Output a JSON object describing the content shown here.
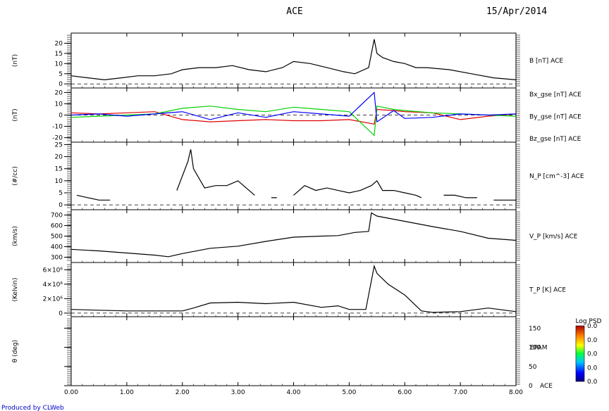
{
  "header": {
    "title": "ACE",
    "date": "15/Apr/2014"
  },
  "footer": {
    "credit": "Produced by CLWeb"
  },
  "colors": {
    "bx": "#e00000",
    "by": "#00d000",
    "bz": "#0000ff",
    "trace": "#000000"
  },
  "x_axis": {
    "ticks": [
      "0.00",
      "1.00",
      "2.00",
      "3.00",
      "4.00",
      "5.00",
      "6.00",
      "7.00",
      "8.00"
    ],
    "range": [
      0,
      8
    ]
  },
  "chart_data": [
    {
      "type": "line",
      "ylabel": "(nT)",
      "ylim": [
        -2,
        25
      ],
      "tick_labels": [
        "20",
        "15",
        "10",
        "5",
        "0"
      ],
      "tick_values": [
        20,
        15,
        10,
        5,
        0
      ],
      "series": [
        {
          "name": "B [nT] ACE",
          "x": [
            0,
            0.3,
            0.6,
            0.9,
            1.2,
            1.5,
            1.8,
            2.0,
            2.3,
            2.6,
            2.9,
            3.2,
            3.5,
            3.8,
            4.0,
            4.3,
            4.6,
            4.9,
            5.1,
            5.35,
            5.45,
            5.5,
            5.6,
            5.8,
            6.0,
            6.2,
            6.4,
            6.8,
            7.2,
            7.6,
            8.0
          ],
          "y": [
            4,
            3,
            2,
            3,
            4,
            4,
            5,
            7,
            8,
            8,
            9,
            7,
            6,
            8,
            11,
            10,
            8,
            6,
            5,
            8,
            22,
            15,
            13,
            11,
            10,
            8,
            8,
            7,
            5,
            3,
            2
          ]
        }
      ],
      "legend": [
        {
          "label": "B [nT] ACE",
          "color": "#000000"
        }
      ]
    },
    {
      "type": "line",
      "ylabel": "(nT)",
      "ylim": [
        -24,
        24
      ],
      "tick_labels": [
        "20",
        "10",
        "0",
        "-10",
        "-20"
      ],
      "tick_values": [
        20,
        10,
        0,
        -10,
        -20
      ],
      "series": [
        {
          "name": "Bx_gse [nT] ACE",
          "x": [
            0,
            0.5,
            1.0,
            1.5,
            2.0,
            2.5,
            3.0,
            3.5,
            4.0,
            4.5,
            5.0,
            5.45,
            5.5,
            5.8,
            6.0,
            6.5,
            7.0,
            7.5,
            8.0
          ],
          "y": [
            2,
            1,
            2,
            3,
            -4,
            -6,
            -5,
            -4,
            -5,
            -5,
            -4,
            -8,
            5,
            4,
            3,
            2,
            -4,
            -1,
            1
          ]
        },
        {
          "name": "By_gse [nT] ACE",
          "x": [
            0,
            0.5,
            1.0,
            1.5,
            2.0,
            2.5,
            3.0,
            3.5,
            4.0,
            4.5,
            5.0,
            5.45,
            5.5,
            5.8,
            6.0,
            6.5,
            7.0,
            7.5,
            8.0
          ],
          "y": [
            -2,
            -1,
            0,
            1,
            6,
            8,
            5,
            3,
            7,
            5,
            3,
            -18,
            8,
            5,
            4,
            2,
            1,
            0,
            -1
          ]
        },
        {
          "name": "Bz_gse [nT] ACE",
          "x": [
            0,
            0.5,
            1.0,
            1.5,
            2.0,
            2.5,
            3.0,
            3.5,
            4.0,
            4.5,
            5.0,
            5.45,
            5.5,
            5.8,
            6.0,
            6.5,
            7.0,
            7.5,
            8.0
          ],
          "y": [
            0,
            1,
            -1,
            1,
            3,
            -4,
            2,
            -2,
            3,
            1,
            -1,
            20,
            -6,
            4,
            -3,
            -2,
            1,
            0,
            1
          ]
        }
      ],
      "legend": [
        {
          "label": "Bx_gse [nT] ACE",
          "color": "#e00000"
        },
        {
          "label": "By_gse [nT] ACE",
          "color": "#00d000"
        },
        {
          "label": "Bz_gse [nT] ACE",
          "color": "#0000ff"
        }
      ]
    },
    {
      "type": "line",
      "ylabel": "(#/cc)",
      "ylim": [
        -2,
        26
      ],
      "tick_labels": [
        "25",
        "20",
        "15",
        "10",
        "5",
        "0"
      ],
      "tick_values": [
        25,
        20,
        15,
        10,
        5,
        0
      ],
      "series": [
        {
          "name": "N_P [cm^-3] ACE",
          "x": [
            0.1,
            0.3,
            0.5,
            0.7,
            null,
            1.9,
            2.1,
            2.15,
            2.2,
            2.4,
            2.6,
            2.8,
            3.0,
            3.2,
            3.3,
            null,
            3.6,
            3.7,
            null,
            4.0,
            4.2,
            4.4,
            4.6,
            4.8,
            5.0,
            5.2,
            5.4,
            5.5,
            5.6,
            5.8,
            6.0,
            6.2,
            6.3,
            null,
            6.7,
            6.9,
            7.1,
            7.3,
            null,
            7.6,
            7.8,
            8.0
          ],
          "y": [
            4,
            3,
            2,
            2,
            null,
            6,
            18,
            23,
            15,
            7,
            8,
            8,
            10,
            6,
            4,
            null,
            3,
            3,
            null,
            4,
            8,
            6,
            7,
            6,
            5,
            6,
            8,
            10,
            6,
            6,
            5,
            4,
            3,
            null,
            4,
            4,
            3,
            3,
            null,
            2,
            2,
            2
          ]
        }
      ],
      "legend": [
        {
          "label": "N_P [cm^-3] ACE",
          "color": "#000000"
        }
      ]
    },
    {
      "type": "line",
      "ylabel": "(km/s)",
      "ylim": [
        250,
        750
      ],
      "tick_labels": [
        "700",
        "600",
        "500",
        "400",
        "300"
      ],
      "tick_values": [
        700,
        600,
        500,
        400,
        300
      ],
      "series": [
        {
          "name": "V_P [km/s] ACE",
          "x": [
            0,
            0.5,
            1.0,
            1.5,
            1.75,
            2.0,
            2.5,
            3.0,
            3.5,
            4.0,
            4.5,
            4.8,
            5.1,
            5.35,
            5.4,
            5.5,
            5.7,
            6.0,
            6.5,
            7.0,
            7.5,
            8.0
          ],
          "y": [
            375,
            360,
            340,
            320,
            305,
            335,
            385,
            405,
            450,
            490,
            500,
            505,
            535,
            545,
            720,
            690,
            670,
            640,
            590,
            545,
            480,
            460
          ]
        }
      ],
      "legend": [
        {
          "label": "V_P [km/s] ACE",
          "color": "#000000"
        }
      ]
    },
    {
      "type": "line",
      "ylabel": "(Kelvin)",
      "ylim": [
        -500000,
        7000000
      ],
      "tick_labels": [
        "6×10⁶",
        "4×10⁶",
        "2×10⁶",
        "0"
      ],
      "tick_values": [
        6000000,
        4000000,
        2000000,
        0
      ],
      "series": [
        {
          "name": "T_P [K] ACE",
          "x": [
            0,
            0.5,
            1.0,
            1.5,
            2.0,
            2.2,
            2.5,
            3.0,
            3.5,
            4.0,
            4.5,
            4.8,
            5.0,
            5.3,
            5.45,
            5.5,
            5.7,
            6.0,
            6.3,
            6.5,
            7.0,
            7.5,
            8.0
          ],
          "y": [
            500000,
            400000,
            300000,
            300000,
            300000,
            700000,
            1400000,
            1500000,
            1300000,
            1500000,
            800000,
            1000000,
            500000,
            500000,
            6500000,
            5500000,
            4000000,
            2500000,
            300000,
            100000,
            200000,
            700000,
            200000
          ]
        }
      ],
      "legend": [
        {
          "label": "T_P [K] ACE",
          "color": "#000000"
        }
      ]
    },
    {
      "type": "heatmap",
      "ylabel": "θ (deg)",
      "ylim": [
        0,
        180
      ],
      "tick_labels": [
        "150",
        "100",
        "50",
        "0"
      ],
      "tick_values": [
        150,
        100,
        50,
        0
      ],
      "instrument_label": "EPAM",
      "instrument_tag": "ACE",
      "colorbar": {
        "title": "Log PSD",
        "labels": [
          "0.0",
          "0.0",
          "0.0",
          "0.0",
          "0.0"
        ]
      }
    }
  ]
}
